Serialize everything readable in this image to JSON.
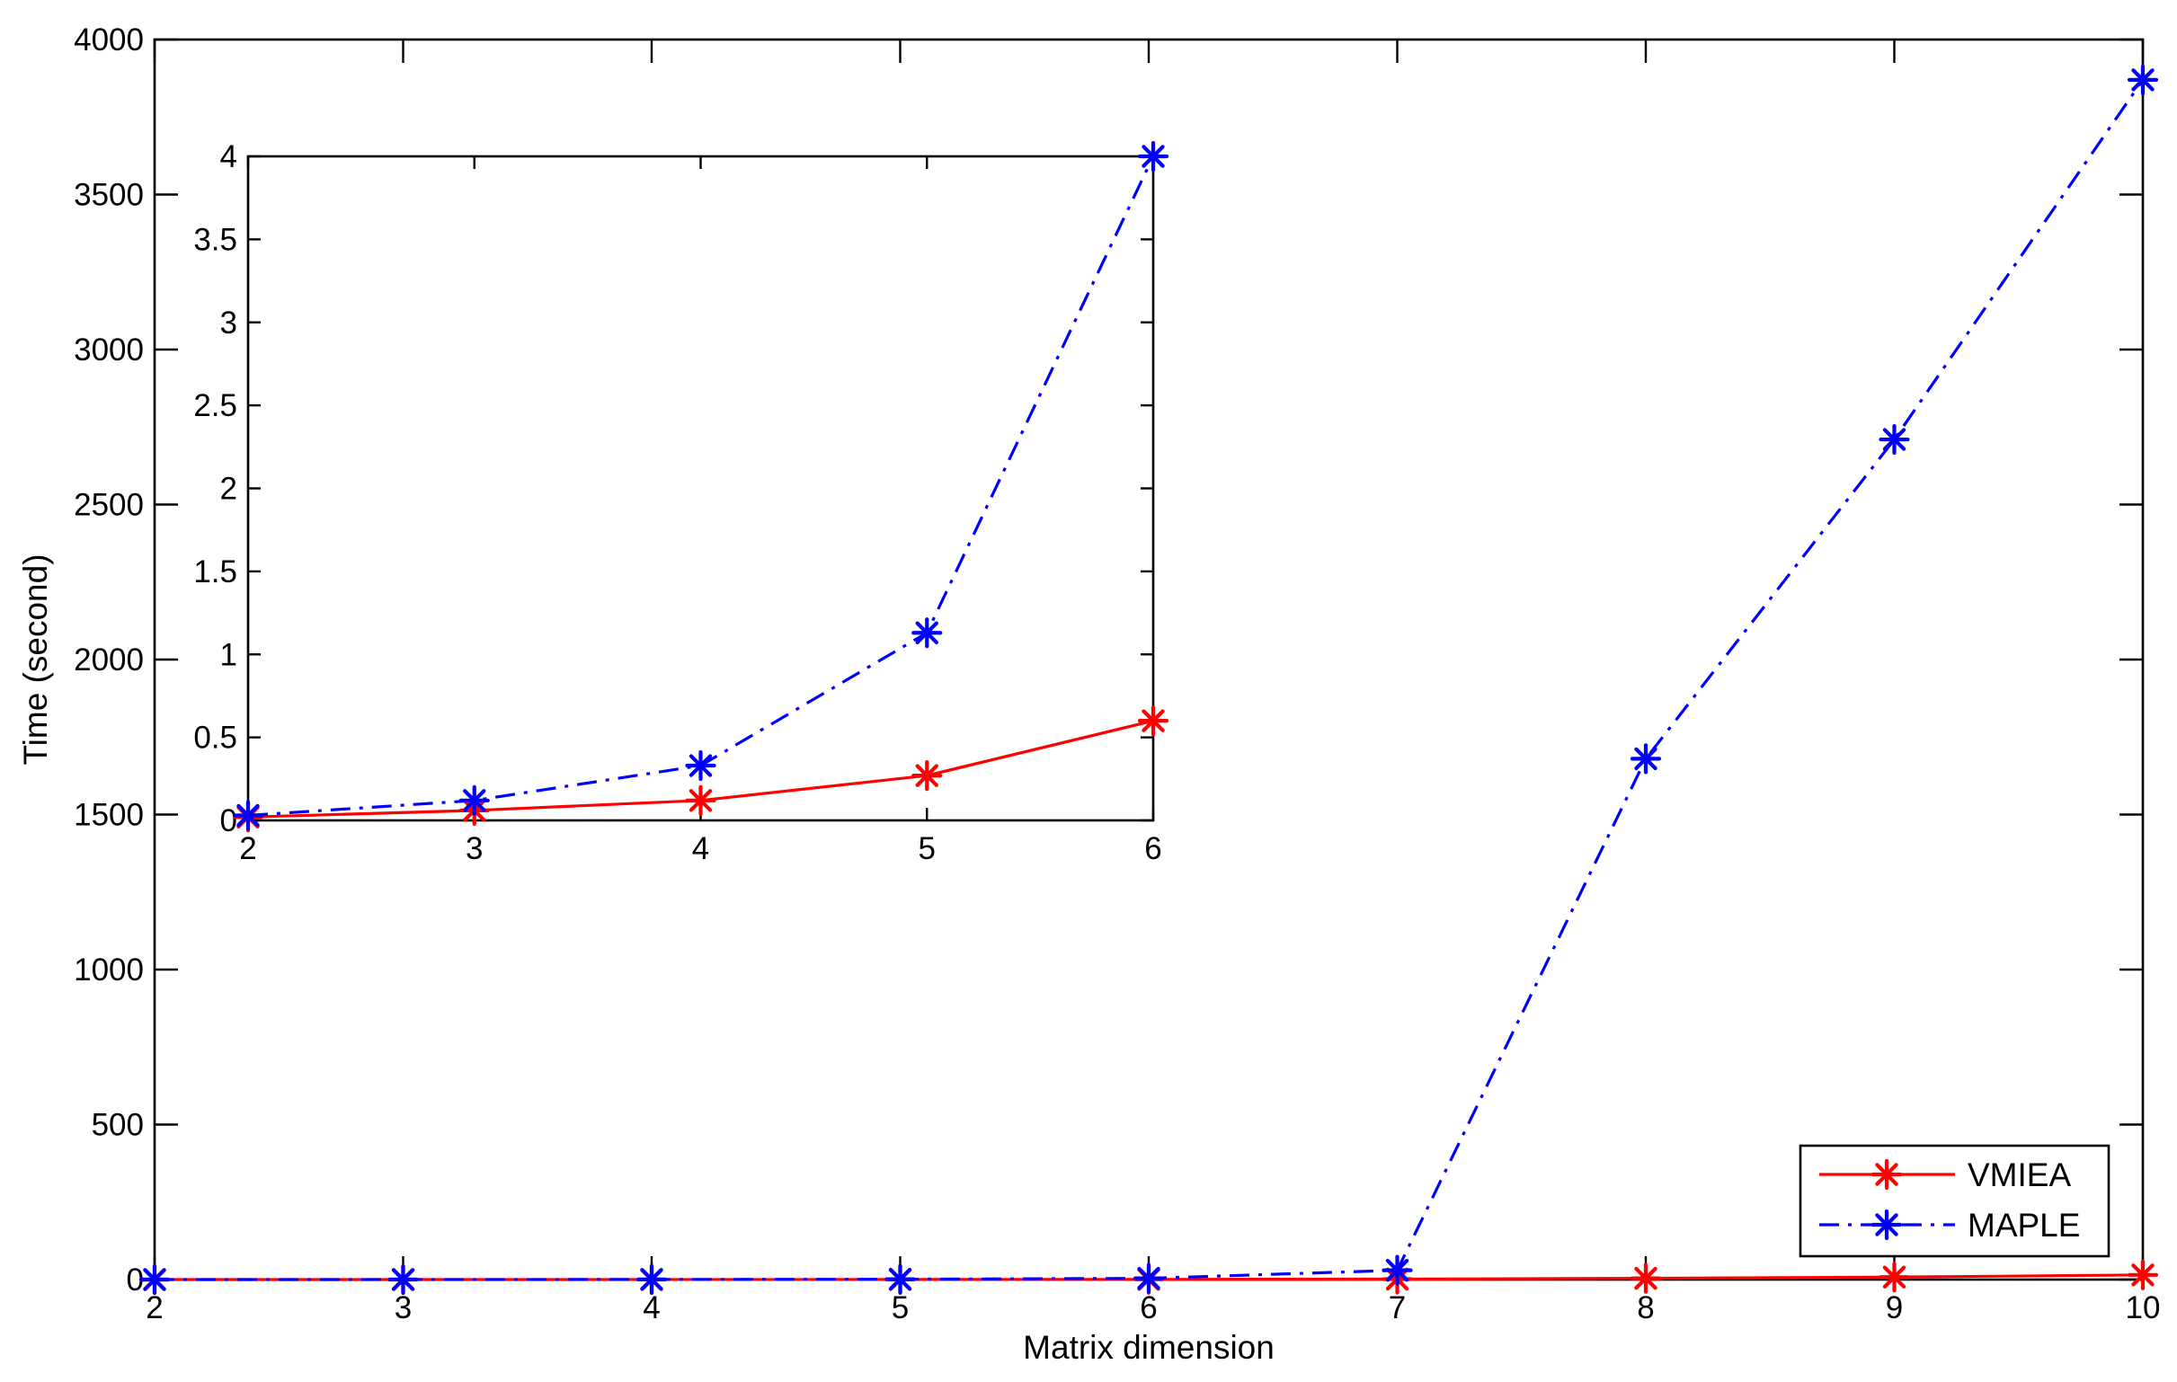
{
  "chart_data": [
    {
      "id": "main",
      "type": "line",
      "xlabel": "Matrix dimension",
      "ylabel": "Time (second)",
      "xlim": [
        2,
        10
      ],
      "ylim": [
        0,
        4000
      ],
      "x_ticks": [
        2,
        3,
        4,
        5,
        6,
        7,
        8,
        9,
        10
      ],
      "y_ticks": [
        0,
        500,
        1000,
        1500,
        2000,
        2500,
        3000,
        3500,
        4000
      ],
      "x": [
        2,
        3,
        4,
        5,
        6,
        7,
        8,
        9,
        10
      ],
      "series": [
        {
          "name": "VMIEA",
          "color": "#ff0000",
          "line_style": "solid",
          "marker": "asterisk",
          "values": [
            0.02,
            0.06,
            0.12,
            0.27,
            0.6,
            1.5,
            4,
            8,
            15
          ]
        },
        {
          "name": "MAPLE",
          "color": "#0000ff",
          "line_style": "dash-dot",
          "marker": "asterisk",
          "values": [
            0.03,
            0.12,
            0.33,
            1.1,
            4.0,
            30,
            1680,
            2710,
            3870
          ]
        }
      ],
      "legend": {
        "position": "bottom-right",
        "entries": [
          "VMIEA",
          "MAPLE"
        ]
      },
      "grid": false
    },
    {
      "id": "inset",
      "type": "line",
      "xlabel": "",
      "ylabel": "",
      "xlim": [
        2,
        6
      ],
      "ylim": [
        0,
        4
      ],
      "x_ticks": [
        2,
        3,
        4,
        5,
        6
      ],
      "y_ticks": [
        "0",
        "0.5",
        "1",
        "1.5",
        "2",
        "2.5",
        "3",
        "3.5",
        "4"
      ],
      "x": [
        2,
        3,
        4,
        5,
        6
      ],
      "series": [
        {
          "name": "VMIEA",
          "color": "#ff0000",
          "line_style": "solid",
          "marker": "asterisk",
          "values": [
            0.02,
            0.06,
            0.12,
            0.27,
            0.6
          ]
        },
        {
          "name": "MAPLE",
          "color": "#0000ff",
          "line_style": "dash-dot",
          "marker": "asterisk",
          "values": [
            0.03,
            0.12,
            0.33,
            1.13,
            4.0
          ]
        }
      ],
      "grid": false
    }
  ]
}
